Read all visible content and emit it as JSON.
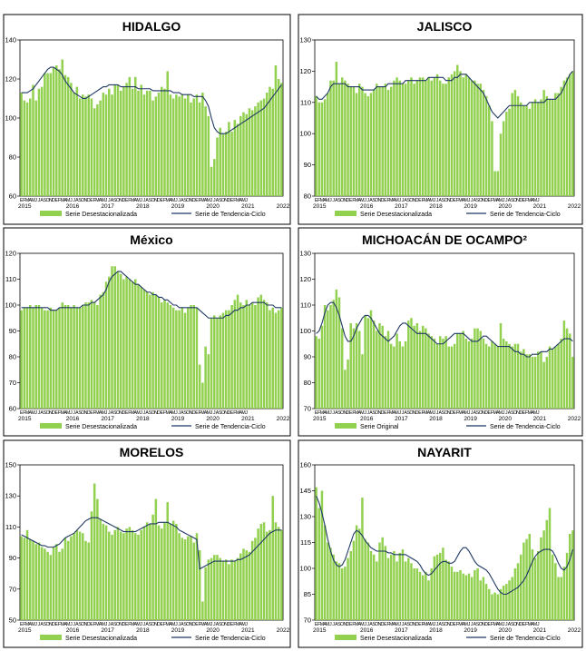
{
  "colors": {
    "bar": "#92D050",
    "line": "#1F3864",
    "frame": "#000000"
  },
  "months_label": "EFMAMJJASONDEFMAMJJASONDEFMAMJJASONDEFMAMJJASONDEFMAMJJASONDEFMAMJJASONDEFMAMJ",
  "years": [
    "2015",
    "2016",
    "2017",
    "2018",
    "2019",
    "2020",
    "2021",
    "2022"
  ],
  "chart_data": [
    {
      "type": "bar",
      "title": "HIDALGO",
      "ylim": [
        60,
        140
      ],
      "yticks": [
        60,
        80,
        100,
        120,
        140
      ],
      "legend": [
        "Serie Desestacionalizada",
        "Serie de Tendencia-Ciclo"
      ],
      "bars": [
        113,
        109,
        108,
        110,
        117,
        109,
        115,
        116,
        123,
        123,
        123,
        126,
        127,
        125,
        130,
        122,
        121,
        118,
        113,
        116,
        110,
        112,
        111,
        112,
        110,
        105,
        107,
        109,
        113,
        112,
        115,
        112,
        117,
        117,
        114,
        116,
        118,
        121,
        115,
        121,
        114,
        117,
        112,
        114,
        114,
        109,
        111,
        113,
        116,
        115,
        124,
        112,
        110,
        112,
        111,
        112,
        110,
        112,
        108,
        110,
        112,
        108,
        113,
        106,
        101,
        75,
        79,
        90,
        95,
        92,
        93,
        98,
        93,
        99,
        97,
        101,
        103,
        102,
        105,
        104,
        106,
        108,
        109,
        110,
        113,
        116,
        115,
        127,
        120,
        118
      ],
      "trend": [
        113,
        113,
        113,
        114,
        115,
        117,
        119,
        121,
        123,
        125,
        126,
        126,
        125,
        124,
        122,
        119,
        117,
        115,
        113,
        112,
        111,
        110,
        110,
        111,
        112,
        113,
        114,
        115,
        116,
        116,
        117,
        117,
        117,
        117,
        116,
        116,
        116,
        116,
        116,
        116,
        115,
        115,
        115,
        115,
        115,
        114,
        114,
        114,
        114,
        114,
        114,
        114,
        113,
        113,
        113,
        112,
        112,
        112,
        112,
        111,
        111,
        111,
        111,
        109,
        106,
        100,
        95,
        93,
        92,
        92,
        92,
        93,
        94,
        95,
        96,
        97,
        98,
        99,
        100,
        101,
        102,
        103,
        104,
        105,
        107,
        109,
        111,
        113,
        115,
        117
      ]
    },
    {
      "type": "bar",
      "title": "JALISCO",
      "ylim": [
        80,
        130
      ],
      "yticks": [
        80,
        90,
        100,
        110,
        120,
        130
      ],
      "legend": [
        "Serie Desestacionalizada",
        "Serie de Tendencia-Ciclo"
      ],
      "bars": [
        112,
        110,
        110,
        111,
        113,
        117,
        117,
        123,
        116,
        118,
        117,
        116,
        115,
        115,
        113,
        116,
        115,
        113,
        112,
        113,
        114,
        116,
        115,
        115,
        116,
        114,
        115,
        117,
        118,
        117,
        116,
        116,
        117,
        118,
        116,
        117,
        118,
        118,
        117,
        118,
        117,
        118,
        119,
        117,
        116,
        116,
        118,
        119,
        120,
        122,
        120,
        118,
        119,
        118,
        117,
        117,
        116,
        116,
        114,
        112,
        109,
        104,
        88,
        88,
        100,
        104,
        107,
        108,
        113,
        114,
        112,
        110,
        109,
        109,
        108,
        110,
        111,
        110,
        111,
        114,
        112,
        111,
        111,
        113,
        113,
        115,
        117,
        118,
        119,
        120
      ],
      "trend": [
        112,
        111,
        111,
        112,
        113,
        115,
        116,
        116,
        116,
        116,
        116,
        115,
        115,
        115,
        115,
        115,
        114,
        114,
        114,
        114,
        114,
        115,
        115,
        115,
        115,
        116,
        116,
        116,
        116,
        116,
        116,
        117,
        117,
        117,
        117,
        117,
        117,
        117,
        117,
        118,
        118,
        118,
        118,
        118,
        118,
        117,
        117,
        117,
        118,
        118,
        119,
        119,
        119,
        118,
        117,
        116,
        115,
        114,
        113,
        111,
        109,
        107,
        106,
        105,
        106,
        107,
        108,
        109,
        109,
        109,
        109,
        109,
        109,
        109,
        110,
        110,
        110,
        110,
        110,
        110,
        111,
        111,
        111,
        111,
        112,
        113,
        115,
        117,
        119,
        120
      ]
    },
    {
      "type": "bar",
      "title": "México",
      "ylim": [
        60,
        120
      ],
      "yticks": [
        60,
        70,
        80,
        90,
        100,
        110,
        120
      ],
      "legend": [
        "Serie Desestacionalizada",
        "Serie de Tendencia-Ciclo"
      ],
      "bars": [
        98,
        99,
        99,
        100,
        99,
        100,
        100,
        99,
        98,
        98,
        99,
        98,
        98,
        99,
        101,
        100,
        100,
        99,
        100,
        99,
        99,
        100,
        101,
        101,
        102,
        101,
        100,
        104,
        105,
        109,
        111,
        115,
        115,
        113,
        112,
        110,
        111,
        110,
        109,
        110,
        108,
        107,
        106,
        105,
        104,
        105,
        104,
        103,
        101,
        102,
        101,
        100,
        99,
        98,
        98,
        99,
        97,
        99,
        100,
        100,
        99,
        77,
        70,
        84,
        81,
        95,
        96,
        95,
        96,
        97,
        98,
        98,
        100,
        102,
        104,
        101,
        100,
        102,
        100,
        101,
        100,
        103,
        104,
        102,
        101,
        98,
        99,
        97,
        98,
        99
      ],
      "trend": [
        99,
        99,
        99,
        99,
        99,
        99,
        99,
        99,
        99,
        99,
        98,
        98,
        98,
        99,
        99,
        99,
        99,
        99,
        99,
        99,
        99,
        100,
        100,
        100,
        101,
        101,
        102,
        103,
        104,
        106,
        109,
        111,
        112,
        113,
        113,
        112,
        111,
        110,
        109,
        108,
        108,
        107,
        106,
        105,
        105,
        104,
        104,
        103,
        103,
        102,
        102,
        101,
        100,
        100,
        99,
        99,
        99,
        99,
        99,
        99,
        99,
        98,
        97,
        96,
        95,
        95,
        95,
        95,
        95,
        95,
        96,
        96,
        97,
        98,
        98,
        99,
        99,
        100,
        100,
        101,
        101,
        101,
        101,
        101,
        100,
        100,
        100,
        99,
        99,
        99
      ]
    },
    {
      "type": "bar",
      "title": "MICHOACÁN DE OCAMPO²",
      "ylim": [
        70,
        130
      ],
      "yticks": [
        70,
        80,
        90,
        100,
        110,
        120,
        130
      ],
      "legend": [
        "Serie Original",
        "Serie de Tendencia-Ciclo"
      ],
      "bars": [
        98,
        97,
        102,
        110,
        108,
        110,
        112,
        116,
        113,
        101,
        85,
        89,
        103,
        101,
        103,
        100,
        91,
        106,
        105,
        108,
        104,
        100,
        103,
        102,
        98,
        100,
        95,
        94,
        99,
        96,
        94,
        96,
        104,
        105,
        102,
        103,
        100,
        102,
        101,
        99,
        98,
        97,
        95,
        98,
        97,
        98,
        94,
        94,
        95,
        99,
        99,
        100,
        97,
        96,
        97,
        101,
        101,
        100,
        97,
        95,
        94,
        96,
        95,
        94,
        103,
        97,
        96,
        95,
        94,
        95,
        95,
        92,
        93,
        91,
        91,
        90,
        90,
        92,
        92,
        88,
        90,
        94,
        93,
        94,
        95,
        97,
        104,
        101,
        99,
        90
      ],
      "trend": [
        99,
        100,
        103,
        107,
        110,
        111,
        111,
        109,
        106,
        102,
        98,
        96,
        96,
        98,
        101,
        103,
        105,
        106,
        106,
        105,
        103,
        101,
        99,
        98,
        97,
        96,
        97,
        98,
        100,
        102,
        103,
        103,
        102,
        101,
        100,
        99,
        99,
        99,
        99,
        98,
        97,
        96,
        95,
        95,
        95,
        96,
        97,
        98,
        99,
        99,
        99,
        99,
        98,
        97,
        96,
        96,
        96,
        97,
        98,
        98,
        97,
        96,
        95,
        94,
        94,
        94,
        94,
        94,
        93,
        92,
        92,
        91,
        91,
        90,
        90,
        91,
        91,
        91,
        92,
        92,
        92,
        93,
        93,
        94,
        95,
        96,
        97,
        97,
        97,
        96
      ]
    },
    {
      "type": "bar",
      "title": "MORELOS",
      "ylim": [
        50,
        150
      ],
      "yticks": [
        50,
        70,
        90,
        110,
        130,
        150
      ],
      "legend": [
        "Serie Desestacionalizada",
        "Serie de Tendencia-Ciclo"
      ],
      "bars": [
        104,
        103,
        108,
        102,
        101,
        99,
        100,
        97,
        96,
        94,
        92,
        97,
        99,
        94,
        96,
        103,
        101,
        104,
        106,
        108,
        107,
        106,
        101,
        100,
        120,
        138,
        128,
        115,
        112,
        111,
        107,
        105,
        108,
        110,
        107,
        106,
        109,
        110,
        108,
        106,
        105,
        108,
        110,
        113,
        112,
        118,
        128,
        111,
        109,
        113,
        126,
        112,
        114,
        112,
        106,
        103,
        102,
        104,
        104,
        100,
        106,
        95,
        62,
        84,
        89,
        90,
        92,
        92,
        90,
        88,
        89,
        86,
        89,
        88,
        90,
        93,
        96,
        95,
        94,
        101,
        103,
        109,
        112,
        113,
        107,
        108,
        130,
        113,
        110,
        108
      ],
      "trend": [
        105,
        104,
        103,
        102,
        101,
        100,
        99,
        98,
        98,
        97,
        97,
        97,
        98,
        99,
        101,
        103,
        104,
        105,
        106,
        108,
        110,
        112,
        114,
        115,
        116,
        116,
        116,
        115,
        114,
        113,
        112,
        111,
        110,
        109,
        108,
        107,
        107,
        107,
        107,
        107,
        108,
        109,
        110,
        111,
        112,
        112,
        112,
        113,
        113,
        113,
        113,
        112,
        111,
        110,
        108,
        107,
        106,
        105,
        104,
        103,
        102,
        83,
        84,
        85,
        86,
        87,
        88,
        88,
        88,
        88,
        88,
        88,
        88,
        88,
        89,
        89,
        90,
        91,
        92,
        94,
        96,
        98,
        100,
        102,
        104,
        106,
        107,
        108,
        108,
        108
      ]
    },
    {
      "type": "bar",
      "title": "NAYARIT",
      "ylim": [
        70,
        160
      ],
      "yticks": [
        70,
        85,
        100,
        115,
        130,
        145,
        160
      ],
      "legend": [
        "Serie Desestacionalizada",
        "Serie de Tendencia-Ciclo"
      ],
      "bars": [
        147,
        135,
        145,
        125,
        115,
        112,
        108,
        104,
        103,
        100,
        101,
        106,
        110,
        116,
        125,
        123,
        141,
        117,
        115,
        110,
        108,
        104,
        115,
        118,
        113,
        106,
        108,
        110,
        104,
        109,
        111,
        104,
        106,
        103,
        100,
        100,
        98,
        96,
        98,
        93,
        100,
        107,
        108,
        109,
        112,
        105,
        104,
        101,
        98,
        98,
        99,
        97,
        96,
        97,
        95,
        99,
        100,
        93,
        95,
        91,
        88,
        85,
        86,
        85,
        88,
        90,
        91,
        93,
        95,
        100,
        103,
        108,
        115,
        117,
        120,
        111,
        106,
        110,
        118,
        122,
        128,
        135,
        108,
        103,
        95,
        95,
        101,
        109,
        120,
        122
      ],
      "trend": [
        142,
        138,
        132,
        125,
        117,
        110,
        105,
        102,
        101,
        102,
        105,
        110,
        115,
        120,
        122,
        121,
        119,
        116,
        114,
        112,
        111,
        110,
        110,
        110,
        110,
        109,
        109,
        108,
        108,
        108,
        108,
        108,
        107,
        106,
        105,
        104,
        102,
        99,
        97,
        96,
        97,
        99,
        101,
        103,
        104,
        104,
        103,
        103,
        104,
        107,
        110,
        112,
        112,
        110,
        107,
        104,
        102,
        101,
        100,
        99,
        97,
        94,
        91,
        88,
        86,
        85,
        85,
        86,
        87,
        88,
        89,
        91,
        93,
        96,
        100,
        104,
        107,
        109,
        110,
        111,
        111,
        111,
        110,
        107,
        103,
        100,
        99,
        101,
        105,
        111
      ]
    }
  ]
}
